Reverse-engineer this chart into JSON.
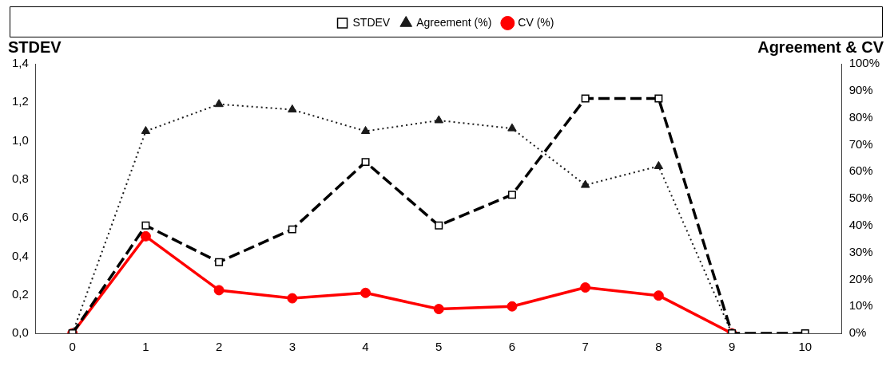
{
  "chart_data": {
    "type": "line",
    "ylabel": "STDEV",
    "y2label": "Agreement & CV",
    "categories": [
      "0",
      "1",
      "2",
      "3",
      "4",
      "5",
      "6",
      "7",
      "8",
      "9",
      "10"
    ],
    "series": [
      {
        "name": "STDEV",
        "color": "#000000",
        "line_style": "dashed",
        "marker": "square",
        "values": [
          0,
          0.56,
          0.37,
          0.54,
          0.89,
          0.56,
          0.72,
          1.22,
          1.22,
          0,
          0
        ]
      },
      {
        "name": "Agreement (%)",
        "color": "#1a1a1a",
        "line_style": "dotted",
        "marker": "triangle",
        "axis": "y2",
        "values": [
          0,
          75,
          85,
          83,
          75,
          79,
          76,
          55,
          62,
          0,
          null
        ]
      },
      {
        "name": "CV (%)",
        "color": "#ff0000",
        "line_style": "solid",
        "marker": "circle",
        "axis": "y2",
        "values": [
          0,
          36,
          16,
          13,
          15,
          9,
          10,
          17,
          14,
          0,
          null
        ]
      }
    ],
    "ylim": [
      0,
      1.4
    ],
    "yticks": [
      {
        "value": 0,
        "label": "0,0"
      },
      {
        "value": 0.2,
        "label": "0,2"
      },
      {
        "value": 0.4,
        "label": "0,4"
      },
      {
        "value": 0.6,
        "label": "0,6"
      },
      {
        "value": 0.8,
        "label": "0,8"
      },
      {
        "value": 1,
        "label": "1,0"
      },
      {
        "value": 1.2,
        "label": "1,2"
      },
      {
        "value": 1.4,
        "label": "1,4"
      }
    ],
    "y2lim": [
      0,
      100
    ],
    "y2ticks": [
      {
        "value": 0,
        "label": "0%"
      },
      {
        "value": 10,
        "label": "10%"
      },
      {
        "value": 20,
        "label": "20%"
      },
      {
        "value": 30,
        "label": "30%"
      },
      {
        "value": 40,
        "label": "40%"
      },
      {
        "value": 50,
        "label": "50%"
      },
      {
        "value": 60,
        "label": "60%"
      },
      {
        "value": 70,
        "label": "70%"
      },
      {
        "value": 80,
        "label": "80%"
      },
      {
        "value": 90,
        "label": "90%"
      },
      {
        "value": 100,
        "label": "100%"
      }
    ],
    "grid": false,
    "legend": "top"
  }
}
